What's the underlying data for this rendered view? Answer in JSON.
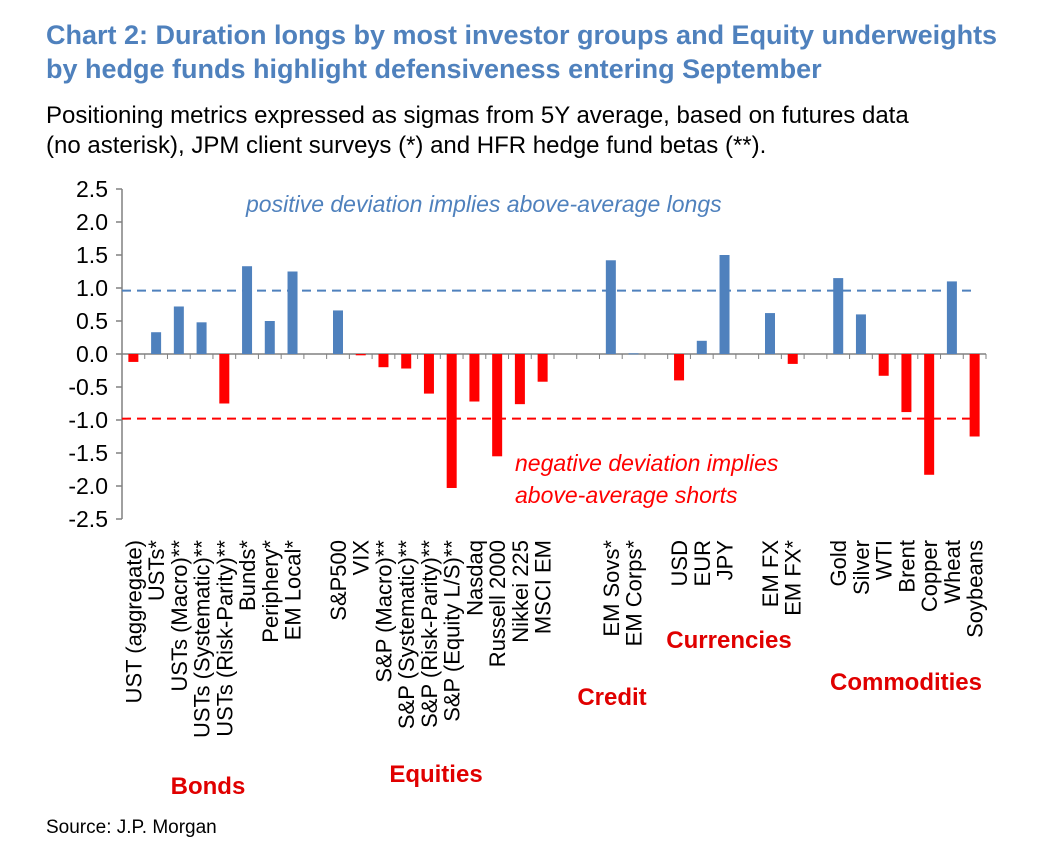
{
  "title_line1": "Chart 2: Duration longs by most investor groups and Equity underweights",
  "title_line2": "by hedge funds highlight defensiveness entering September",
  "subtitle_line1": "Positioning metrics expressed as sigmas from 5Y average, based on futures data",
  "subtitle_line2": "(no asterisk), JPM client surveys (*) and HFR hedge fund betas (**).",
  "source": "Source: J.P. Morgan",
  "colors": {
    "title": "#4f81bd",
    "positive": "#4f81bd",
    "negative": "#ff0000",
    "group_label": "#e00000"
  },
  "chart_data": {
    "type": "bar",
    "ylim": [
      -2.5,
      2.5
    ],
    "yticks": [
      "2.5",
      "2.0",
      "1.5",
      "1.0",
      "0.5",
      "0.0",
      "-0.5",
      "-1.0",
      "-1.5",
      "-2.0",
      "-2.5"
    ],
    "ytick_values": [
      2.5,
      2.0,
      1.5,
      1.0,
      0.5,
      0.0,
      -0.5,
      -1.0,
      -1.5,
      -2.0,
      -2.5
    ],
    "categories": [
      "UST (aggregate)",
      "USTs*",
      "USTs (Macro)**",
      "USTs (Systematic)**",
      "USTs (Risk-Parity)**",
      "Bunds*",
      "Periphery*",
      "EM Local*",
      "",
      "S&P500",
      "VIX",
      "S&P (Macro)**",
      "S&P (Systematic)**",
      "S&P (Risk-Parity)**",
      "S&P (Equity L/S)**",
      "Nasdaq",
      "Russell 2000",
      "Nikkei 225",
      "MSCI EM",
      "",
      "",
      "EM Sovs*",
      "EM Corps*",
      "",
      "USD",
      "EUR",
      "JPY",
      "",
      "EM FX",
      "EM FX*",
      "",
      "Gold",
      "Silver",
      "WTI",
      "Brent",
      "Copper",
      "Wheat",
      "Soybeans"
    ],
    "values": [
      -0.12,
      0.33,
      0.72,
      0.48,
      -0.75,
      1.33,
      0.5,
      1.25,
      null,
      0.66,
      -0.02,
      -0.2,
      -0.22,
      -0.6,
      -2.03,
      -0.72,
      -1.55,
      -0.76,
      -0.42,
      null,
      null,
      1.42,
      0.01,
      null,
      -0.4,
      0.2,
      1.5,
      null,
      0.62,
      -0.15,
      null,
      1.15,
      0.6,
      -0.33,
      -0.88,
      -1.83,
      1.1,
      -1.25
    ],
    "reference_lines": [
      {
        "value": 0.96,
        "color": "#4f81bd",
        "label": "positive deviation implies above-average longs"
      },
      {
        "value": -0.98,
        "color": "#ff0000",
        "label": "negative deviation implies above-average shorts"
      }
    ],
    "annotations": {
      "positive_text": "positive deviation implies above-average longs",
      "negative_line1": "negative deviation implies",
      "negative_line2": "above-average shorts"
    },
    "groups": [
      {
        "name": "Bonds",
        "from": 0,
        "to": 7
      },
      {
        "name": "Equities",
        "from": 9,
        "to": 18
      },
      {
        "name": "Credit",
        "from": 21,
        "to": 22
      },
      {
        "name": "Currencies",
        "from": 24,
        "to": 29
      },
      {
        "name": "Commodities",
        "from": 31,
        "to": 37
      }
    ]
  }
}
